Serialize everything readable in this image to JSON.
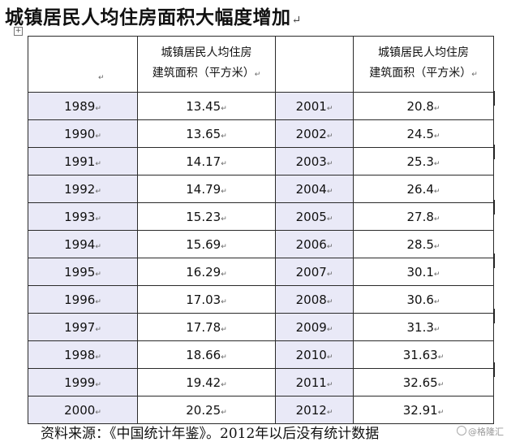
{
  "title": "城镇居民人均住房面积大幅度增加",
  "table": {
    "headers": [
      "",
      "城镇居民人均住房\n建筑面积（平方米）",
      "",
      "城镇居民人均住房\n建筑面积（平方米）"
    ],
    "left_rows": [
      {
        "year": "1989",
        "area": "13.45"
      },
      {
        "year": "1990",
        "area": "13.65"
      },
      {
        "year": "1991",
        "area": "14.17"
      },
      {
        "year": "1992",
        "area": "14.79"
      },
      {
        "year": "1993",
        "area": "15.23"
      },
      {
        "year": "1994",
        "area": "15.69"
      },
      {
        "year": "1995",
        "area": "16.29"
      },
      {
        "year": "1996",
        "area": "17.03"
      },
      {
        "year": "1997",
        "area": "17.78"
      },
      {
        "year": "1998",
        "area": "18.66"
      },
      {
        "year": "1999",
        "area": "19.42"
      },
      {
        "year": "2000",
        "area": "20.25"
      }
    ],
    "right_rows": [
      {
        "year": "2001",
        "area": "20.8"
      },
      {
        "year": "2002",
        "area": "24.5"
      },
      {
        "year": "2003",
        "area": "25.3"
      },
      {
        "year": "2004",
        "area": "26.4"
      },
      {
        "year": "2005",
        "area": "27.8"
      },
      {
        "year": "2006",
        "area": "28.5"
      },
      {
        "year": "2007",
        "area": "30.1"
      },
      {
        "year": "2008",
        "area": "30.6"
      },
      {
        "year": "2009",
        "area": "31.3"
      },
      {
        "year": "2010",
        "area": "31.63"
      },
      {
        "year": "2011",
        "area": "32.65"
      },
      {
        "year": "2012",
        "area": "32.91"
      }
    ]
  },
  "footer": "资料来源：《中国统计年鉴》。2012年以后没有统计数据",
  "watermark": "@格隆汇",
  "colors": {
    "shade": "#e9e9f7",
    "border": "#2a2a2a"
  }
}
